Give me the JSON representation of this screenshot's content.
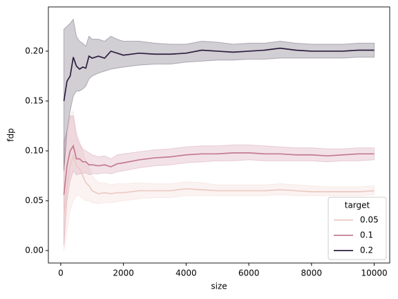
{
  "chart_data": {
    "type": "line",
    "x_label": "size",
    "y_label": "fdp",
    "legend_title": "target",
    "legend": "lower right",
    "x": [
      100,
      200,
      300,
      400,
      500,
      600,
      700,
      800,
      900,
      1000,
      1200,
      1400,
      1600,
      1800,
      2000,
      2500,
      3000,
      3500,
      4000,
      4500,
      5000,
      5500,
      6000,
      6500,
      7000,
      7500,
      8000,
      8500,
      9000,
      9500,
      10000
    ],
    "series": [
      {
        "name": "0.05",
        "color": "#ebc9c2",
        "values": [
          0.035,
          0.065,
          0.085,
          0.095,
          0.085,
          0.082,
          0.075,
          0.068,
          0.065,
          0.06,
          0.057,
          0.058,
          0.057,
          0.058,
          0.058,
          0.06,
          0.06,
          0.06,
          0.062,
          0.061,
          0.06,
          0.06,
          0.06,
          0.06,
          0.061,
          0.06,
          0.059,
          0.059,
          0.059,
          0.059,
          0.06
        ],
        "lower": [
          0.0,
          0.02,
          0.04,
          0.05,
          0.055,
          0.055,
          0.052,
          0.05,
          0.05,
          0.048,
          0.047,
          0.048,
          0.048,
          0.049,
          0.05,
          0.052,
          0.053,
          0.053,
          0.055,
          0.055,
          0.055,
          0.055,
          0.055,
          0.055,
          0.056,
          0.055,
          0.055,
          0.055,
          0.055,
          0.055,
          0.056
        ],
        "upper": [
          0.09,
          0.11,
          0.135,
          0.14,
          0.12,
          0.11,
          0.1,
          0.09,
          0.085,
          0.075,
          0.068,
          0.068,
          0.066,
          0.067,
          0.067,
          0.068,
          0.067,
          0.067,
          0.069,
          0.068,
          0.066,
          0.066,
          0.066,
          0.066,
          0.067,
          0.066,
          0.065,
          0.064,
          0.064,
          0.064,
          0.065
        ]
      },
      {
        "name": "0.1",
        "color": "#c27a92",
        "values": [
          0.056,
          0.085,
          0.1,
          0.105,
          0.092,
          0.092,
          0.089,
          0.089,
          0.086,
          0.086,
          0.085,
          0.086,
          0.084,
          0.087,
          0.088,
          0.091,
          0.093,
          0.094,
          0.096,
          0.097,
          0.097,
          0.098,
          0.098,
          0.097,
          0.097,
          0.096,
          0.096,
          0.095,
          0.096,
          0.097,
          0.097
        ],
        "lower": [
          0.005,
          0.05,
          0.07,
          0.08,
          0.076,
          0.077,
          0.077,
          0.078,
          0.076,
          0.077,
          0.077,
          0.078,
          0.077,
          0.079,
          0.08,
          0.083,
          0.085,
          0.086,
          0.088,
          0.089,
          0.09,
          0.09,
          0.091,
          0.09,
          0.09,
          0.09,
          0.09,
          0.089,
          0.09,
          0.09,
          0.091
        ],
        "upper": [
          0.11,
          0.12,
          0.135,
          0.135,
          0.115,
          0.107,
          0.102,
          0.1,
          0.098,
          0.096,
          0.094,
          0.095,
          0.092,
          0.096,
          0.097,
          0.099,
          0.101,
          0.102,
          0.104,
          0.105,
          0.105,
          0.106,
          0.106,
          0.105,
          0.104,
          0.103,
          0.103,
          0.102,
          0.102,
          0.103,
          0.103
        ]
      },
      {
        "name": "0.2",
        "color": "#2c1e3d",
        "values": [
          0.15,
          0.17,
          0.175,
          0.194,
          0.185,
          0.182,
          0.184,
          0.183,
          0.195,
          0.193,
          0.195,
          0.193,
          0.2,
          0.198,
          0.196,
          0.198,
          0.197,
          0.197,
          0.198,
          0.201,
          0.2,
          0.199,
          0.2,
          0.201,
          0.203,
          0.201,
          0.2,
          0.2,
          0.2,
          0.201,
          0.201
        ],
        "lower": [
          0.08,
          0.12,
          0.14,
          0.155,
          0.16,
          0.16,
          0.162,
          0.165,
          0.172,
          0.175,
          0.178,
          0.18,
          0.182,
          0.183,
          0.184,
          0.186,
          0.187,
          0.187,
          0.189,
          0.19,
          0.191,
          0.191,
          0.192,
          0.192,
          0.193,
          0.193,
          0.193,
          0.193,
          0.193,
          0.194,
          0.194
        ],
        "upper": [
          0.222,
          0.225,
          0.228,
          0.232,
          0.215,
          0.21,
          0.208,
          0.205,
          0.215,
          0.212,
          0.212,
          0.21,
          0.215,
          0.212,
          0.21,
          0.21,
          0.208,
          0.207,
          0.207,
          0.21,
          0.209,
          0.207,
          0.208,
          0.208,
          0.21,
          0.208,
          0.207,
          0.207,
          0.207,
          0.208,
          0.208
        ]
      }
    ],
    "xlim": [
      -395,
      10495
    ],
    "xticks": [
      0,
      2000,
      4000,
      6000,
      8000,
      10000
    ],
    "ylim": [
      -0.0125,
      0.2444
    ],
    "yticks": [
      {
        "value": 0,
        "label": "0.00"
      },
      {
        "value": 0.05,
        "label": "0.05"
      },
      {
        "value": 0.1,
        "label": "0.10"
      },
      {
        "value": 0.15,
        "label": "0.15"
      },
      {
        "value": 0.2,
        "label": "0.20"
      }
    ]
  }
}
